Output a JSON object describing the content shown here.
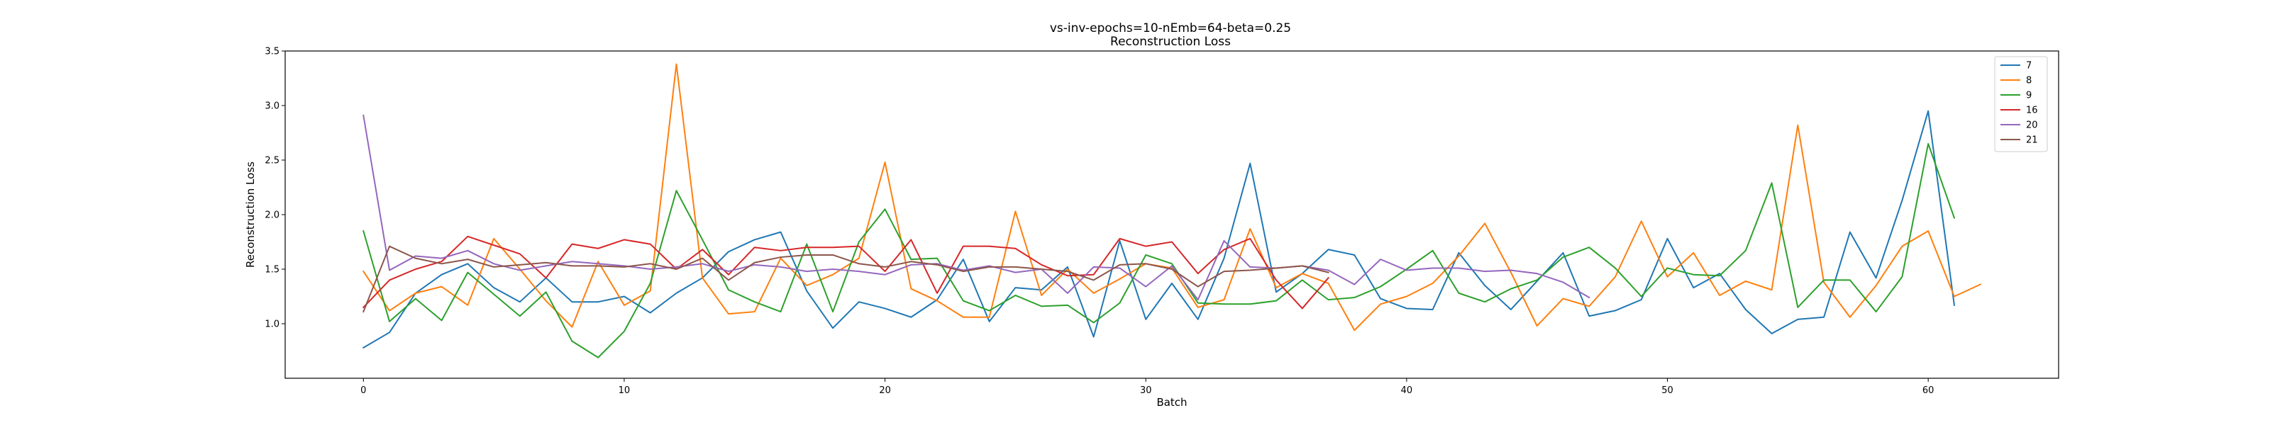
{
  "chart_data": {
    "type": "line",
    "title": "vs-inv-epochs=10-nEmb=64-beta=0.25",
    "subtitle": "Reconstruction Loss",
    "xlabel": "Batch",
    "ylabel": "Reconstruction Loss",
    "xlim": [
      -3,
      65
    ],
    "ylim": [
      0.5,
      3.5
    ],
    "xticks": [
      0,
      10,
      20,
      30,
      40,
      50,
      60
    ],
    "yticks": [
      1.0,
      1.5,
      2.0,
      2.5,
      3.0,
      3.5
    ],
    "ytick_labels": [
      "1.0",
      "1.5",
      "2.0",
      "2.5",
      "3.0",
      "3.5"
    ],
    "grid": false,
    "legend_position": "top-right",
    "series": [
      {
        "name": "7",
        "color": "#1f77b4",
        "values": [
          0.78,
          0.92,
          1.28,
          1.45,
          1.55,
          1.33,
          1.2,
          1.42,
          1.2,
          1.2,
          1.25,
          1.1,
          1.28,
          1.42,
          1.66,
          1.77,
          1.84,
          1.3,
          0.96,
          1.2,
          1.14,
          1.06,
          1.22,
          1.59,
          1.02,
          1.33,
          1.31,
          1.52,
          0.88,
          1.76,
          1.04,
          1.37,
          1.04,
          1.6,
          2.47,
          1.29,
          1.46,
          1.68,
          1.63,
          1.23,
          1.14,
          1.13,
          1.65,
          1.35,
          1.13,
          1.39,
          1.65,
          1.07,
          1.12,
          1.22,
          1.78,
          1.33,
          1.46,
          1.13,
          0.91,
          1.04,
          1.06,
          1.84,
          1.42,
          2.13,
          2.95,
          1.17
        ]
      },
      {
        "name": "8",
        "color": "#ff7f0e",
        "values": [
          1.48,
          1.12,
          1.28,
          1.34,
          1.17,
          1.78,
          1.5,
          1.21,
          0.97,
          1.57,
          1.17,
          1.3,
          3.38,
          1.42,
          1.09,
          1.11,
          1.6,
          1.35,
          1.45,
          1.6,
          2.48,
          1.32,
          1.21,
          1.06,
          1.06,
          2.03,
          1.26,
          1.5,
          1.28,
          1.41,
          1.55,
          1.51,
          1.15,
          1.22,
          1.87,
          1.33,
          1.46,
          1.37,
          0.94,
          1.18,
          1.25,
          1.37,
          1.62,
          1.92,
          1.47,
          0.98,
          1.23,
          1.16,
          1.43,
          1.94,
          1.43,
          1.65,
          1.26,
          1.39,
          1.31,
          2.82,
          1.38,
          1.06,
          1.35,
          1.71,
          1.85,
          1.25,
          1.36
        ]
      },
      {
        "name": "9",
        "color": "#2ca02c",
        "values": [
          1.85,
          1.02,
          1.23,
          1.03,
          1.47,
          1.27,
          1.07,
          1.29,
          0.84,
          0.69,
          0.93,
          1.37,
          2.22,
          1.77,
          1.31,
          1.2,
          1.11,
          1.73,
          1.11,
          1.75,
          2.05,
          1.59,
          1.6,
          1.21,
          1.12,
          1.26,
          1.16,
          1.17,
          1.01,
          1.19,
          1.63,
          1.55,
          1.19,
          1.18,
          1.18,
          1.21,
          1.4,
          1.22,
          1.24,
          1.34,
          1.5,
          1.67,
          1.28,
          1.2,
          1.32,
          1.4,
          1.61,
          1.7,
          1.51,
          1.25,
          1.51,
          1.45,
          1.44,
          1.67,
          2.29,
          1.15,
          1.4,
          1.4,
          1.11,
          1.43,
          2.65,
          1.97
        ]
      },
      {
        "name": "16",
        "color": "#d62728",
        "values": [
          1.15,
          1.4,
          1.5,
          1.57,
          1.8,
          1.72,
          1.64,
          1.42,
          1.73,
          1.69,
          1.77,
          1.73,
          1.5,
          1.68,
          1.45,
          1.7,
          1.67,
          1.7,
          1.7,
          1.71,
          1.48,
          1.77,
          1.28,
          1.71,
          1.71,
          1.69,
          1.54,
          1.44,
          1.45,
          1.78,
          1.71,
          1.75,
          1.46,
          1.68,
          1.78,
          1.4,
          1.14,
          1.42
        ]
      },
      {
        "name": "20",
        "color": "#9467bd",
        "values": [
          2.91,
          1.49,
          1.62,
          1.6,
          1.67,
          1.55,
          1.49,
          1.53,
          1.57,
          1.55,
          1.53,
          1.5,
          1.52,
          1.55,
          1.48,
          1.54,
          1.52,
          1.48,
          1.5,
          1.48,
          1.45,
          1.54,
          1.55,
          1.49,
          1.53,
          1.47,
          1.5,
          1.28,
          1.52,
          1.51,
          1.34,
          1.53,
          1.22,
          1.76,
          1.52,
          1.51,
          1.53,
          1.49,
          1.36,
          1.59,
          1.49,
          1.51,
          1.51,
          1.48,
          1.49,
          1.46,
          1.38,
          1.24
        ]
      },
      {
        "name": "21",
        "color": "#8c564b",
        "values": [
          1.11,
          1.71,
          1.6,
          1.55,
          1.59,
          1.52,
          1.54,
          1.56,
          1.53,
          1.53,
          1.52,
          1.55,
          1.5,
          1.6,
          1.4,
          1.56,
          1.61,
          1.63,
          1.63,
          1.55,
          1.52,
          1.57,
          1.54,
          1.48,
          1.52,
          1.52,
          1.5,
          1.48,
          1.4,
          1.54,
          1.55,
          1.5,
          1.34,
          1.48,
          1.49,
          1.51,
          1.53,
          1.47
        ]
      }
    ]
  }
}
